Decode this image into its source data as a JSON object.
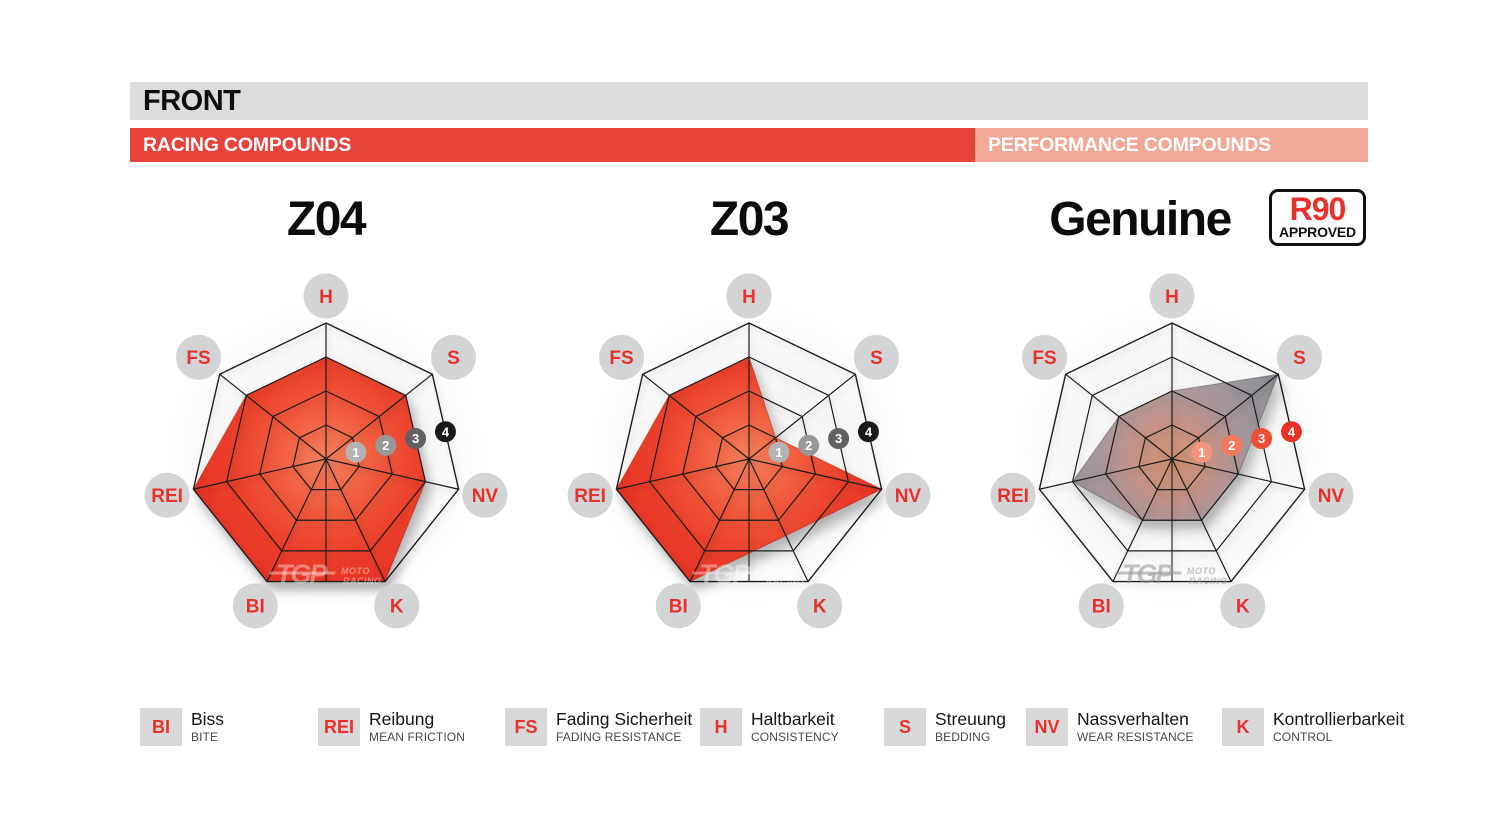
{
  "header": {
    "title": "FRONT"
  },
  "category_bars": [
    {
      "label": "RACING COMPOUNDS",
      "color": "#e8423b"
    },
    {
      "label": "PERFORMANCE COMPOUNDS",
      "color": "#f3a796"
    }
  ],
  "badge_r90": {
    "line1": "R90",
    "line2": "APPROVED",
    "accent_color": "#e8312a"
  },
  "watermark": {
    "main": "TGP",
    "sub1": "MOTO",
    "sub2": "RACING"
  },
  "axis_label_color": "#e8312a",
  "axis_circle_color": "#d3d4d6",
  "grid_color": "#1c1c1c",
  "ring_markers": [
    "1",
    "2",
    "3",
    "4"
  ],
  "chart_data": {
    "type": "radar",
    "axes": [
      "H",
      "S",
      "NV",
      "K",
      "BI",
      "REI",
      "FS"
    ],
    "scale": {
      "min": 0,
      "max": 4,
      "rings": 4
    },
    "series": [
      {
        "name": "Z04",
        "group": "RACING COMPOUNDS",
        "theme": "red",
        "values": {
          "H": 3,
          "S": 3,
          "NV": 3,
          "K": 4,
          "BI": 4,
          "REI": 4,
          "FS": 3
        }
      },
      {
        "name": "Z03",
        "group": "RACING COMPOUNDS",
        "theme": "red",
        "values": {
          "H": 3,
          "S": 1,
          "NV": 4,
          "K": 2.5,
          "BI": 4,
          "REI": 4,
          "FS": 3
        }
      },
      {
        "name": "Genuine",
        "group": "PERFORMANCE COMPOUNDS",
        "approval": "R90 APPROVED",
        "theme": "gray",
        "values": {
          "H": 2,
          "S": 4,
          "NV": 2,
          "K": 2,
          "BI": 2,
          "REI": 3,
          "FS": 2
        }
      }
    ],
    "themes": {
      "red": {
        "gradient": [
          "#f5815f",
          "#f15c3e",
          "#eb3f2a",
          "#e52f22"
        ],
        "fill_opacity": 1,
        "stroke": "rgba(185,35,18,0.55)",
        "badge_colors": [
          "#b4b4b5",
          "#98989b",
          "#616164",
          "#1a1a1c"
        ],
        "watermark_color": "rgba(255,255,255,0.38)"
      },
      "gray": {
        "gradient": [
          "#d2906e",
          "#c89081",
          "#a5939a",
          "#8f8f94",
          "#7b7b80"
        ],
        "fill_opacity": 0.95,
        "stroke": "rgba(85,85,92,0.5)",
        "badge_colors": [
          "#f4947f",
          "#f4775c",
          "#ee4e35",
          "#e73125"
        ],
        "watermark_color": "rgba(145,145,150,0.55)"
      }
    }
  },
  "legend": [
    {
      "abbr": "BI",
      "name": "Biss",
      "caption": "BITE"
    },
    {
      "abbr": "REI",
      "name": "Reibung",
      "caption": "MEAN FRICTION"
    },
    {
      "abbr": "FS",
      "name": "Fading Sicherheit",
      "caption": "FADING RESISTANCE"
    },
    {
      "abbr": "H",
      "name": "Haltbarkeit",
      "caption": "CONSISTENCY"
    },
    {
      "abbr": "S",
      "name": "Streuung",
      "caption": "BEDDING"
    },
    {
      "abbr": "NV",
      "name": "Nassverhalten",
      "caption": "WEAR RESISTANCE"
    },
    {
      "abbr": "K",
      "name": "Kontrollierbarkeit",
      "caption": "CONTROL"
    }
  ]
}
